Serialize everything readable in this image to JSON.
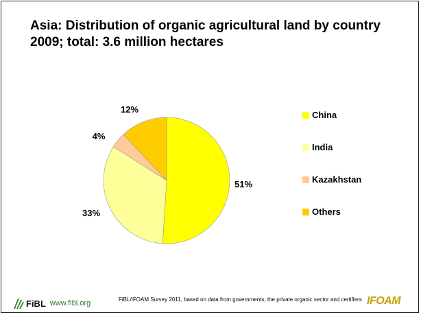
{
  "title": "Asia: Distribution of organic agricultural land by country 2009; total: 3.6 million hectares",
  "chart_data": {
    "type": "pie",
    "title": "Asia: Distribution of organic agricultural land by country 2009; total: 3.6 million hectares",
    "legend_position": "right",
    "slices": [
      {
        "label": "China",
        "value": 51,
        "display": "51%",
        "color": "#ffff00"
      },
      {
        "label": "India",
        "value": 33,
        "display": "33%",
        "color": "#ffff99"
      },
      {
        "label": "Kazakhstan",
        "value": 4,
        "display": "4%",
        "color": "#ffcc99"
      },
      {
        "label": "Others",
        "value": 12,
        "display": "12%",
        "color": "#ffcc00"
      }
    ]
  },
  "footer": {
    "logo_text": "FiBL",
    "url": "www.fibl.org",
    "source": "FiBL/IFOAM Survey 2011, based on data from governments, the private organic sector and certifiers",
    "partner_logo": "IFOAM"
  }
}
